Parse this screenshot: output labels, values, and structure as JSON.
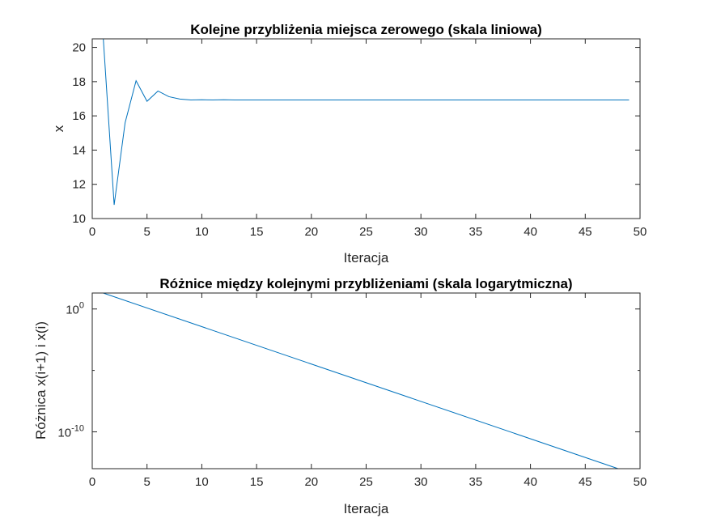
{
  "chart_data": [
    {
      "type": "line",
      "title": "Kolejne przybliżenia miejsca zerowego (skala liniowa)",
      "xlabel": "Iteracja",
      "ylabel": "x",
      "xlim": [
        0,
        50
      ],
      "ylim": [
        10,
        20.5
      ],
      "y_scale": "linear",
      "grid": false,
      "xticks": [
        0,
        5,
        10,
        15,
        20,
        25,
        30,
        35,
        40,
        45,
        50
      ],
      "yticks": [
        10,
        12,
        14,
        16,
        18,
        20
      ],
      "line_color": "#0072BD",
      "series": [
        {
          "x": [
            1,
            2,
            3,
            4,
            5,
            6,
            7,
            8,
            9,
            10,
            11,
            12,
            13,
            14,
            15,
            16,
            17,
            18,
            19,
            20,
            21,
            22,
            23,
            24,
            25,
            26,
            27,
            28,
            29,
            30,
            31,
            32,
            33,
            34,
            35,
            36,
            37,
            38,
            39,
            40,
            41,
            42,
            43,
            44,
            45,
            46,
            47,
            48,
            49
          ],
          "values": [
            20.6,
            10.8,
            15.6,
            18.05,
            16.85,
            17.45,
            17.12,
            16.98,
            16.93,
            16.94,
            16.93,
            16.94,
            16.93,
            16.93,
            16.93,
            16.93,
            16.93,
            16.93,
            16.93,
            16.93,
            16.93,
            16.93,
            16.93,
            16.93,
            16.93,
            16.93,
            16.93,
            16.93,
            16.93,
            16.93,
            16.93,
            16.93,
            16.93,
            16.93,
            16.93,
            16.93,
            16.93,
            16.93,
            16.93,
            16.93,
            16.93,
            16.93,
            16.93,
            16.93,
            16.93,
            16.93,
            16.93,
            16.93,
            16.93
          ]
        }
      ]
    },
    {
      "type": "line",
      "title": "Różnice między kolejnymi przybliżeniami (skala logarytmiczna)",
      "xlabel": "Iteracja",
      "ylabel": "Różnica x(i+1) i x(i)",
      "xlim": [
        0,
        50
      ],
      "ylim_log10": [
        -13,
        1.3
      ],
      "y_scale": "log",
      "grid": false,
      "xticks": [
        0,
        5,
        10,
        15,
        20,
        25,
        30,
        35,
        40,
        45,
        50
      ],
      "yticks": [
        {
          "base": "10",
          "exp": "0",
          "log10": 0
        },
        {
          "base": "10",
          "exp": "-10",
          "log10": -10
        }
      ],
      "line_color": "#0072BD",
      "series": [
        {
          "x": [
            1,
            48
          ],
          "values_log10": [
            1.3,
            -13
          ]
        }
      ]
    }
  ]
}
